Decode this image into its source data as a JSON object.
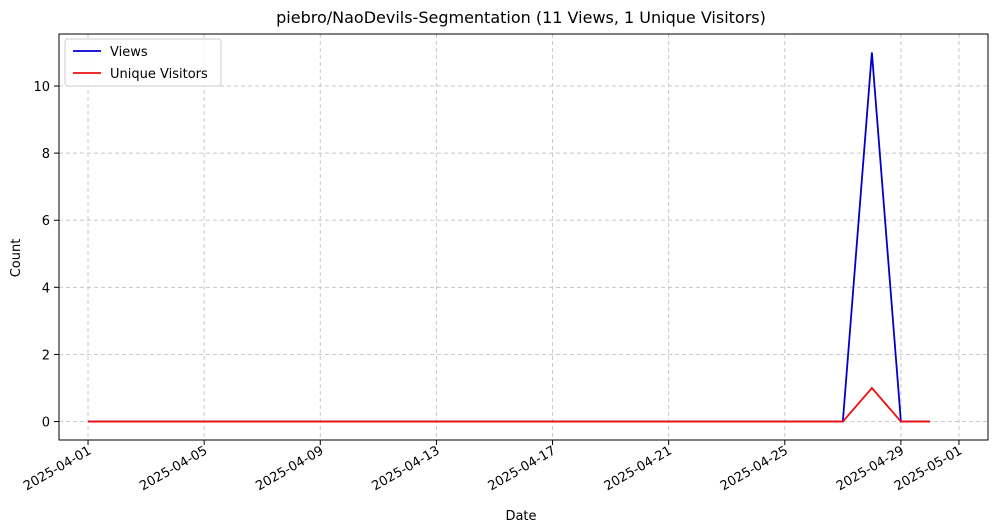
{
  "chart_data": {
    "type": "line",
    "title": "piebro/NaoDevils-Segmentation (11 Views, 1 Unique Visitors)",
    "xlabel": "Date",
    "ylabel": "Count",
    "x": [
      "2025-04-01",
      "2025-04-02",
      "2025-04-03",
      "2025-04-04",
      "2025-04-05",
      "2025-04-06",
      "2025-04-07",
      "2025-04-08",
      "2025-04-09",
      "2025-04-10",
      "2025-04-11",
      "2025-04-12",
      "2025-04-13",
      "2025-04-14",
      "2025-04-15",
      "2025-04-16",
      "2025-04-17",
      "2025-04-18",
      "2025-04-19",
      "2025-04-20",
      "2025-04-21",
      "2025-04-22",
      "2025-04-23",
      "2025-04-24",
      "2025-04-25",
      "2025-04-26",
      "2025-04-27",
      "2025-04-28",
      "2025-04-29",
      "2025-04-30"
    ],
    "series": [
      {
        "name": "Views",
        "color": "#0000cc",
        "values": [
          0,
          0,
          0,
          0,
          0,
          0,
          0,
          0,
          0,
          0,
          0,
          0,
          0,
          0,
          0,
          0,
          0,
          0,
          0,
          0,
          0,
          0,
          0,
          0,
          0,
          0,
          0,
          11,
          0,
          0
        ]
      },
      {
        "name": "Unique Visitors",
        "color": "#ee1111",
        "values": [
          0,
          0,
          0,
          0,
          0,
          0,
          0,
          0,
          0,
          0,
          0,
          0,
          0,
          0,
          0,
          0,
          0,
          0,
          0,
          0,
          0,
          0,
          0,
          0,
          0,
          0,
          0,
          1,
          0,
          0
        ]
      }
    ],
    "xlim": [
      "2025-03-31",
      "2025-05-02"
    ],
    "ylim": [
      -0.55,
      11.55
    ],
    "xticks": [
      "2025-04-01",
      "2025-04-05",
      "2025-04-09",
      "2025-04-13",
      "2025-04-17",
      "2025-04-21",
      "2025-04-25",
      "2025-04-29",
      "2025-05-01"
    ],
    "yticks": [
      0,
      2,
      4,
      6,
      8,
      10
    ],
    "grid": true,
    "legend_position": "top-left"
  }
}
